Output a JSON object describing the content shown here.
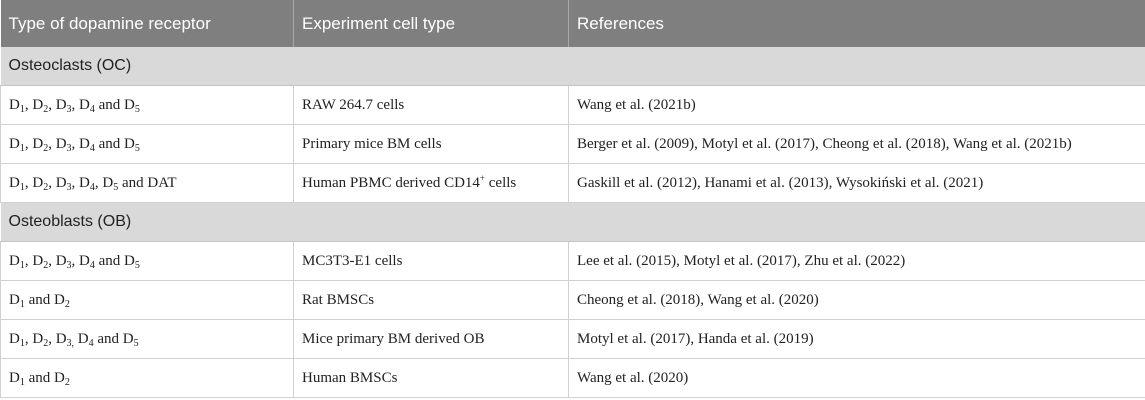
{
  "table": {
    "headers": [
      "Type of dopamine receptor",
      "Experiment cell type",
      "References"
    ],
    "sections": [
      {
        "title": "Osteoclasts (OC)",
        "rows": [
          {
            "receptors": [
              {
                "t": "D",
                "s": "1"
              },
              {
                "t": ", D",
                "s": "2"
              },
              {
                "t": ", D",
                "s": "3"
              },
              {
                "t": ", D",
                "s": "4"
              },
              {
                "t": " and D",
                "s": "5"
              }
            ],
            "cell_type": [
              {
                "t": "RAW 264.7 cells"
              }
            ],
            "references": "Wang et al. (2021b)"
          },
          {
            "receptors": [
              {
                "t": "D",
                "s": "1"
              },
              {
                "t": ", D",
                "s": "2"
              },
              {
                "t": ", D",
                "s": "3"
              },
              {
                "t": ", D",
                "s": "4"
              },
              {
                "t": " and D",
                "s": "5"
              }
            ],
            "cell_type": [
              {
                "t": "Primary mice BM cells"
              }
            ],
            "references": "Berger et al. (2009), Motyl et al. (2017), Cheong et al. (2018), Wang et al. (2021b)"
          },
          {
            "receptors": [
              {
                "t": "D",
                "s": "1"
              },
              {
                "t": ", D",
                "s": "2"
              },
              {
                "t": ", D",
                "s": "3"
              },
              {
                "t": ", D",
                "s": "4"
              },
              {
                "t": ", D",
                "s": "5"
              },
              {
                "t": " and DAT"
              }
            ],
            "cell_type": [
              {
                "t": "Human PBMC derived CD14",
                "sup": "+"
              },
              {
                "t": " cells"
              }
            ],
            "references": "Gaskill et al. (2012), Hanami et al. (2013), Wysokiński et al. (2021)"
          }
        ]
      },
      {
        "title": "Osteoblasts (OB)",
        "rows": [
          {
            "receptors": [
              {
                "t": "D",
                "s": "1"
              },
              {
                "t": ", D",
                "s": "2"
              },
              {
                "t": ", D",
                "s": "3"
              },
              {
                "t": ", D",
                "s": "4"
              },
              {
                "t": " and D",
                "s": "5"
              }
            ],
            "cell_type": [
              {
                "t": "MC3T3-E1 cells"
              }
            ],
            "references": "Lee et al. (2015), Motyl et al. (2017), Zhu et al. (2022)"
          },
          {
            "receptors": [
              {
                "t": "D",
                "s": "1"
              },
              {
                "t": " and D",
                "s": "2"
              }
            ],
            "cell_type": [
              {
                "t": "Rat BMSCs"
              }
            ],
            "references": "Cheong et al. (2018), Wang et al. (2020)"
          },
          {
            "receptors": [
              {
                "t": "D",
                "s": "1"
              },
              {
                "t": ", D",
                "s": "2"
              },
              {
                "t": ", D",
                "s": "3,"
              },
              {
                "t": " D",
                "s": "4"
              },
              {
                "t": " and D",
                "s": "5"
              }
            ],
            "cell_type": [
              {
                "t": "Mice primary BM derived OB"
              }
            ],
            "references": "Motyl et al. (2017), Handa et al. (2019)"
          },
          {
            "receptors": [
              {
                "t": "D",
                "s": "1"
              },
              {
                "t": " and D",
                "s": "2"
              }
            ],
            "cell_type": [
              {
                "t": "Human BMSCs"
              }
            ],
            "references": "Wang et al. (2020)"
          }
        ]
      }
    ]
  }
}
